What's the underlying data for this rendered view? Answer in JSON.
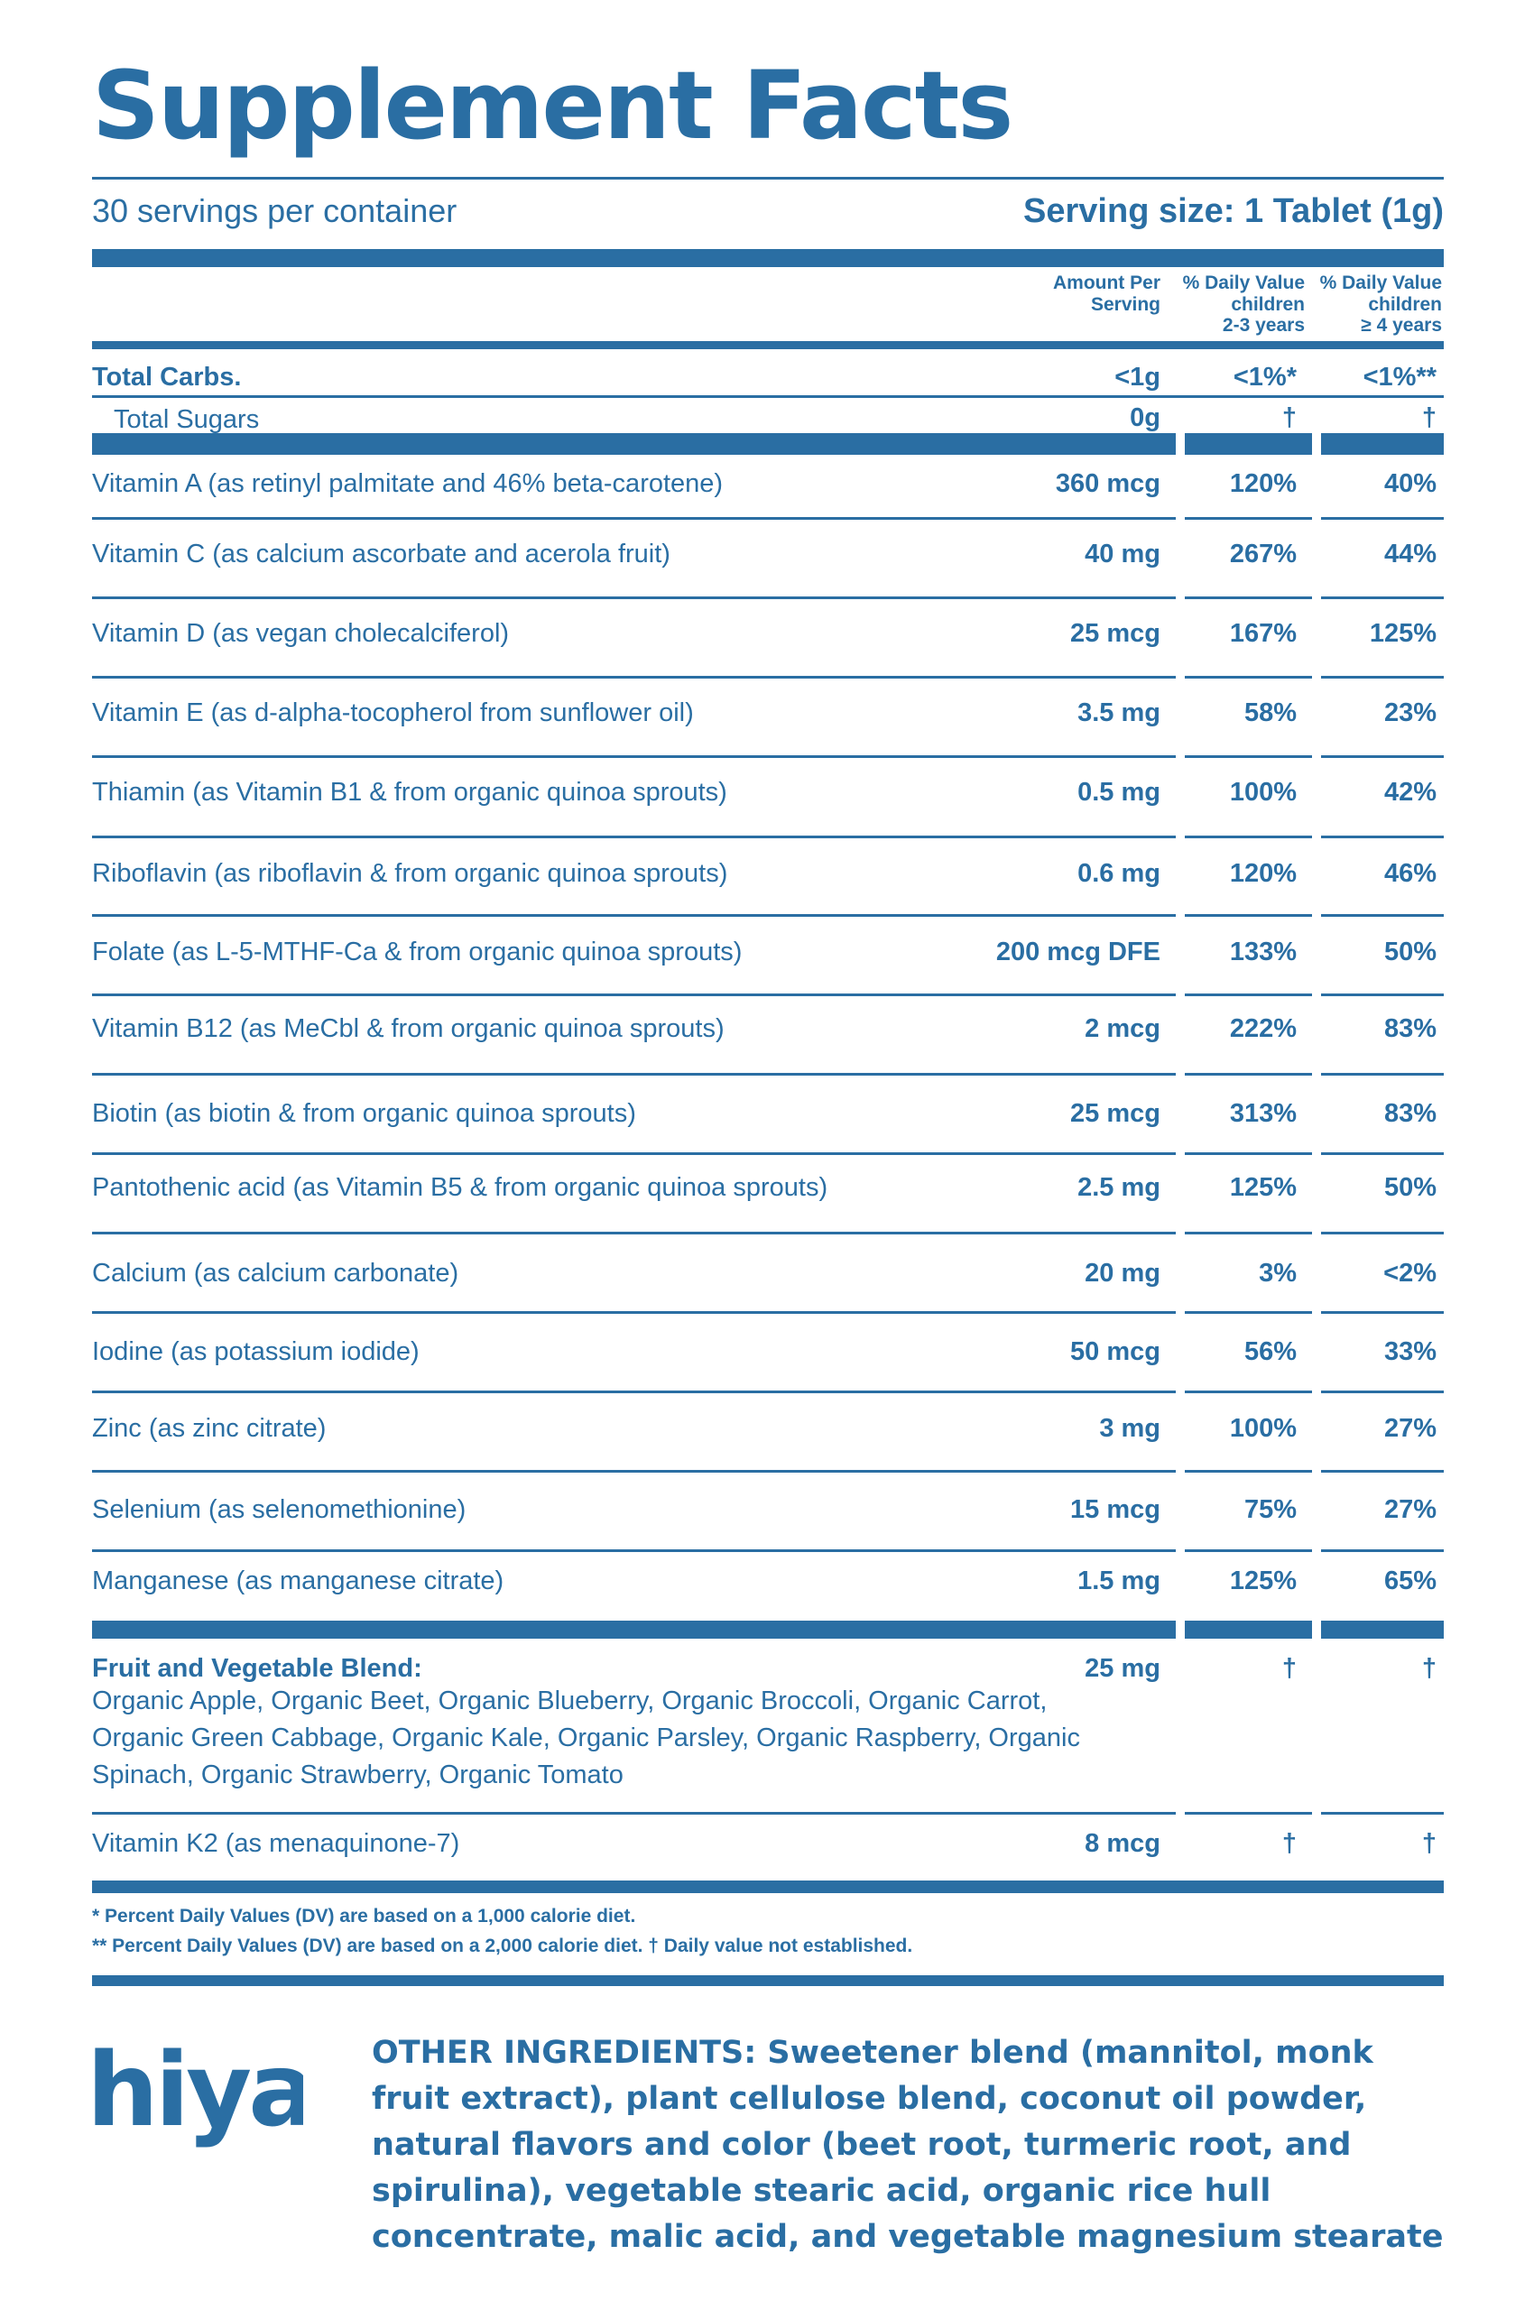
{
  "title": "Supplement Facts",
  "servings_per_container": "30 servings per container",
  "serving_size": "Serving size: 1 Tablet (1g)",
  "columns": {
    "amount": [
      "Amount Per",
      "Serving"
    ],
    "dv_young": [
      "% Daily Value",
      "children",
      "2-3 years"
    ],
    "dv_old": [
      "% Daily Value",
      "children",
      "≥ 4 years"
    ]
  },
  "carbs": [
    {
      "name": "Total Carbs.",
      "amount": "<1g",
      "dv1": "<1%*",
      "dv2": "<1%**"
    },
    {
      "name": "Total Sugars",
      "amount": "0g",
      "dv1": "†",
      "dv2": "†"
    }
  ],
  "nutrients": [
    {
      "name": "Vitamin A (as retinyl palmitate and 46% beta-carotene)",
      "amount": "360 mcg",
      "dv1": "120%",
      "dv2": "40%"
    },
    {
      "name": "Vitamin C (as calcium ascorbate and acerola fruit)",
      "amount": "40 mg",
      "dv1": "267%",
      "dv2": "44%"
    },
    {
      "name": "Vitamin D (as vegan cholecalciferol)",
      "amount": "25 mcg",
      "dv1": "167%",
      "dv2": "125%"
    },
    {
      "name": "Vitamin E (as d-alpha-tocopherol from sunflower oil)",
      "amount": "3.5 mg",
      "dv1": "58%",
      "dv2": "23%"
    },
    {
      "name": "Thiamin (as Vitamin B1 & from organic quinoa sprouts)",
      "amount": "0.5 mg",
      "dv1": "100%",
      "dv2": "42%"
    },
    {
      "name": "Riboflavin (as riboflavin & from organic quinoa sprouts)",
      "amount": "0.6 mg",
      "dv1": "120%",
      "dv2": "46%"
    },
    {
      "name": "Folate (as L-5-MTHF-Ca & from organic quinoa sprouts)",
      "amount": "200 mcg DFE",
      "dv1": "133%",
      "dv2": "50%"
    },
    {
      "name": "Vitamin B12 (as MeCbl & from organic quinoa sprouts)",
      "amount": "2 mcg",
      "dv1": "222%",
      "dv2": "83%"
    },
    {
      "name": "Biotin (as biotin & from organic quinoa sprouts)",
      "amount": "25 mcg",
      "dv1": "313%",
      "dv2": "83%"
    },
    {
      "name": "Pantothenic acid (as Vitamin B5 & from organic quinoa sprouts)",
      "amount": "2.5 mg",
      "dv1": "125%",
      "dv2": "50%"
    },
    {
      "name": "Calcium (as calcium carbonate)",
      "amount": "20 mg",
      "dv1": "3%",
      "dv2": "<2%"
    },
    {
      "name": "Iodine (as potassium iodide)",
      "amount": "50 mcg",
      "dv1": "56%",
      "dv2": "33%"
    },
    {
      "name": "Zinc (as zinc citrate)",
      "amount": "3 mg",
      "dv1": "100%",
      "dv2": "27%"
    },
    {
      "name": "Selenium (as selenomethionine)",
      "amount": "15 mcg",
      "dv1": "75%",
      "dv2": "27%"
    },
    {
      "name": "Manganese (as manganese citrate)",
      "amount": "1.5 mg",
      "dv1": "125%",
      "dv2": "65%"
    }
  ],
  "blend": {
    "name": "Fruit and Vegetable Blend:",
    "amount": "25 mg",
    "dv1": "†",
    "dv2": "†",
    "ingredients": "Organic Apple, Organic Beet, Organic Blueberry, Organic Broccoli, Organic Carrot, Organic Green Cabbage, Organic Kale, Organic Parsley, Organic Raspberry, Organic Spinach, Organic Strawberry, Organic Tomato"
  },
  "vitamin_k2": {
    "name": "Vitamin K2 (as menaquinone-7)",
    "amount": "8 mcg",
    "dv1": "†",
    "dv2": "†"
  },
  "footnotes": [
    " * Percent Daily Values (DV) are based on a 1,000 calorie diet.",
    "** Percent Daily Values (DV) are based on a 2,000 calorie diet.  † Daily value not established."
  ],
  "logo": {
    "text": "hiya",
    "trademark": "™"
  },
  "other_ingredients": {
    "label": "OTHER INGREDIENTS:",
    "text": " Sweetener blend (mannitol, monk fruit extract), plant cellulose blend, coconut oil powder, natural flavors and color (beet root, turmeric root, and spirulina), vegetable stearic acid, organic rice hull concentrate, malic acid, and vegetable magnesium stearate"
  },
  "colors": {
    "brand_blue": "#2a6ea3"
  }
}
